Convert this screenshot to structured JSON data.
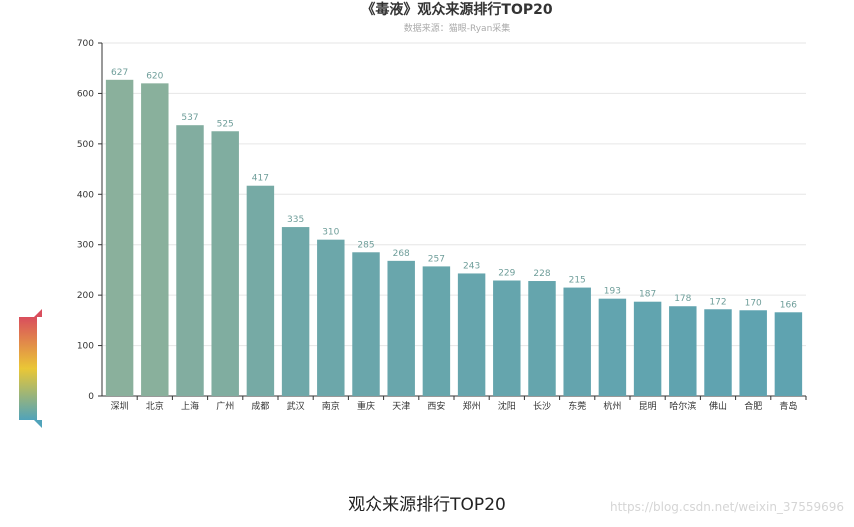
{
  "chart_data": {
    "type": "bar",
    "title": "《毒液》观众来源排行TOP20",
    "subtitle": "数据来源：猫眼-Ryan采集",
    "categories": [
      "深圳",
      "北京",
      "上海",
      "广州",
      "成都",
      "武汉",
      "南京",
      "重庆",
      "天津",
      "西安",
      "郑州",
      "沈阳",
      "长沙",
      "东莞",
      "杭州",
      "昆明",
      "哈尔滨",
      "佛山",
      "合肥",
      "青岛"
    ],
    "values": [
      627,
      620,
      537,
      525,
      417,
      335,
      310,
      285,
      268,
      257,
      243,
      229,
      228,
      215,
      193,
      187,
      178,
      172,
      170,
      166
    ],
    "ylim": [
      0,
      700
    ],
    "yticks": [
      0,
      100,
      200,
      300,
      400,
      500,
      600,
      700
    ],
    "grid": true,
    "colors": {
      "high": "#8ab09c",
      "low": "#5fa3b0",
      "label": "#6f9e9a"
    },
    "visual_map": {
      "colors": [
        "#d94e5d",
        "#eac736",
        "#50a3ba"
      ]
    }
  },
  "caption": "观众来源排行TOP20",
  "watermark": "https://blog.csdn.net/weixin_37559696"
}
